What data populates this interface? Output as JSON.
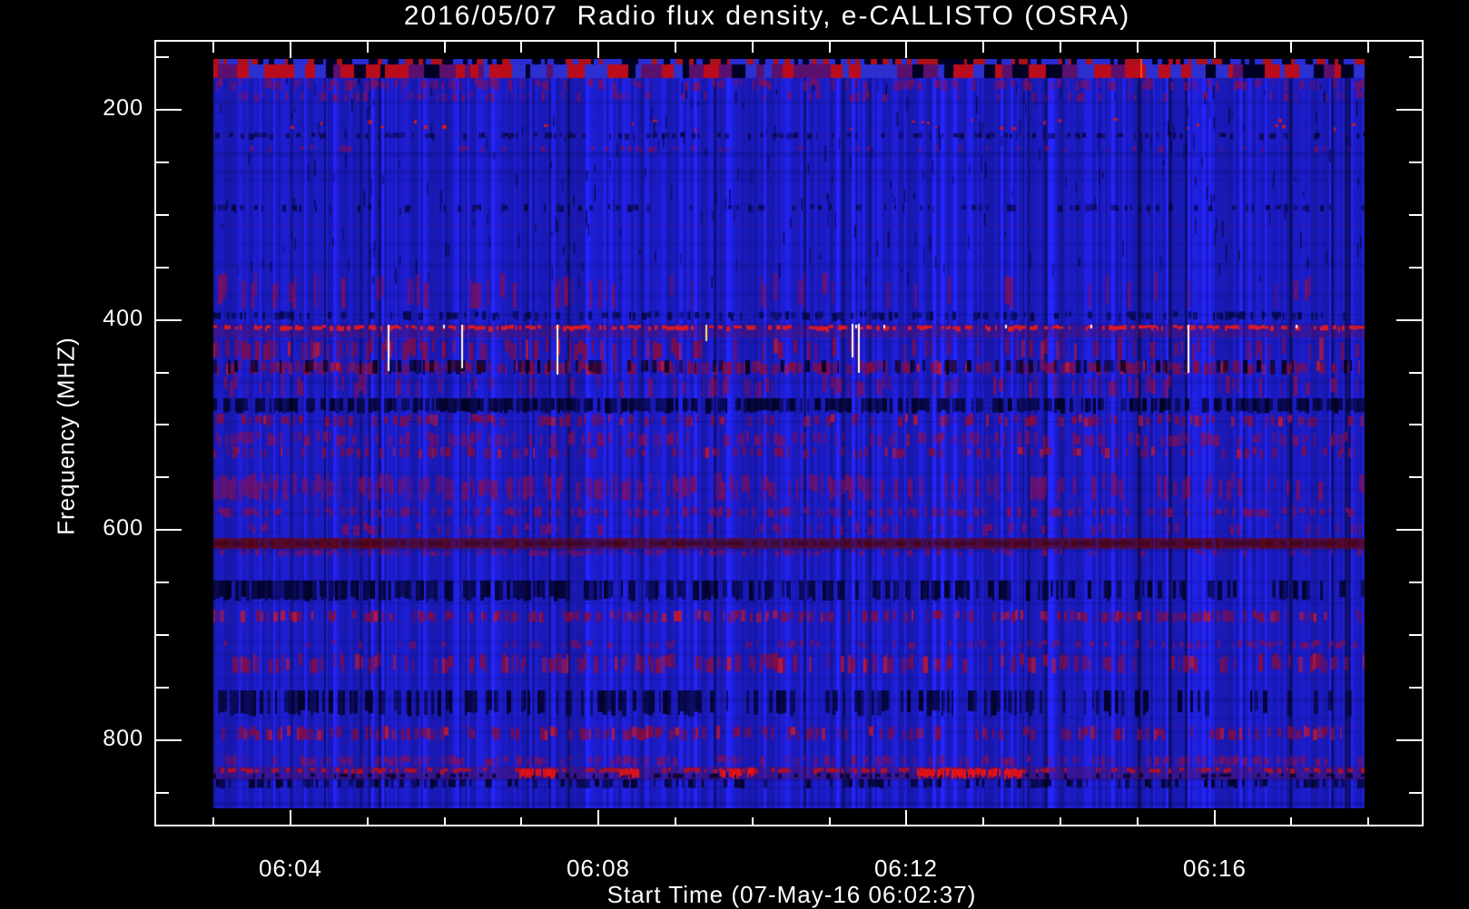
{
  "figure": {
    "title": "2016/05/07  Radio flux density, e-CALLISTO (OSRA)",
    "xlabel": "Start Time (07-May-16 06:02:37)",
    "ylabel": "Frequency (MHZ)"
  },
  "chart_data": {
    "type": "heatmap",
    "variant": "solar-radio-dynamic-spectrum",
    "title": "2016/05/07  Radio flux density, e-CALLISTO (OSRA)",
    "xlabel": "Start Time (07-May-16 06:02:37)",
    "ylabel": "Frequency (MHZ)",
    "x_axis": {
      "start_time_label": "06:02:37",
      "major_ticks": [
        "06:04",
        "06:08",
        "06:12",
        "06:16"
      ],
      "minor_ticks": [
        "06:03",
        "06:05",
        "06:06",
        "06:07",
        "06:09",
        "06:10",
        "06:11",
        "06:13",
        "06:14",
        "06:15",
        "06:17",
        "06:18"
      ],
      "minor_interval_minutes": 1
    },
    "y_axis": {
      "major_ticks": [
        200,
        400,
        600,
        800
      ],
      "minor_ticks": [
        150,
        250,
        300,
        350,
        450,
        500,
        550,
        650,
        700,
        750,
        850
      ],
      "unit": "MHz",
      "direction": "increasing-downward"
    },
    "data_extent": {
      "time": [
        "06:03:00",
        "06:17:57"
      ],
      "frequency_mhz": [
        152,
        865
      ]
    },
    "palette": {
      "background": "#000000",
      "text": "#ffffff",
      "frame": "#ffffff",
      "base_blue": "#2222ee",
      "dark_blue": "#000026",
      "red": "#b41420",
      "bright_red": "#d71a26",
      "dark_red": "#600616",
      "purple": "#961246",
      "spike_white": "#ffffff"
    },
    "bands": [
      {
        "f0": 152,
        "f1": 157,
        "type": "checker",
        "strength": 1.0,
        "xmod": "flat"
      },
      {
        "f0": 157,
        "f1": 170,
        "type": "bigblock",
        "strength": 1.0,
        "xmod": "flat"
      },
      {
        "f0": 170,
        "f1": 182,
        "type": "purple",
        "strength": 0.45,
        "xmod": "flat"
      },
      {
        "f0": 182,
        "f1": 192,
        "type": "purple",
        "strength": 0.2,
        "xmod": "flat"
      },
      {
        "f0": 208,
        "f1": 221,
        "type": "speck",
        "strength": 0.5,
        "xmod": "flat"
      },
      {
        "f0": 222,
        "f1": 228,
        "type": "dark",
        "strength": 0.35,
        "xmod": "flat"
      },
      {
        "f0": 234,
        "f1": 241,
        "type": "purple",
        "strength": 0.15,
        "xmod": "flat"
      },
      {
        "f0": 290,
        "f1": 297,
        "type": "dark",
        "strength": 0.3,
        "xmod": "flat"
      },
      {
        "f0": 355,
        "f1": 389,
        "type": "purple",
        "strength": 0.2,
        "xmod": "left"
      },
      {
        "f0": 392,
        "f1": 400,
        "type": "dark",
        "strength": 0.45,
        "xmod": "flat"
      },
      {
        "f0": 405,
        "f1": 417,
        "type": "brightspeck",
        "strength": 0.95,
        "xmod": "flat"
      },
      {
        "f0": 417,
        "f1": 438,
        "type": "redmix",
        "strength": 0.5,
        "xmod": "left"
      },
      {
        "f0": 438,
        "f1": 452,
        "type": "redmix",
        "strength": 0.7,
        "xmod": "flat"
      },
      {
        "f0": 438,
        "f1": 452,
        "type": "darkdash",
        "strength": 0.4,
        "xmod": "left"
      },
      {
        "f0": 452,
        "f1": 474,
        "type": "purple",
        "strength": 0.3,
        "xmod": "flat"
      },
      {
        "f0": 475,
        "f1": 489,
        "type": "darkdash",
        "strength": 0.8,
        "xmod": "flat"
      },
      {
        "f0": 489,
        "f1": 501,
        "type": "redmix",
        "strength": 0.45,
        "xmod": "flat"
      },
      {
        "f0": 506,
        "f1": 520,
        "type": "purple",
        "strength": 0.5,
        "xmod": "flat"
      },
      {
        "f0": 520,
        "f1": 532,
        "type": "redmix",
        "strength": 0.4,
        "xmod": "flat"
      },
      {
        "f0": 545,
        "f1": 571,
        "type": "purple",
        "strength": 0.7,
        "xmod": "left"
      },
      {
        "f0": 577,
        "f1": 588,
        "type": "purple",
        "strength": 0.5,
        "xmod": "flat"
      },
      {
        "f0": 593,
        "f1": 605,
        "type": "purple",
        "strength": 0.25,
        "xmod": "flat"
      },
      {
        "f0": 608,
        "f1": 618,
        "type": "darkred",
        "strength": 0.9,
        "xmod": "ends"
      },
      {
        "f0": 618,
        "f1": 625,
        "type": "purple",
        "strength": 0.5,
        "xmod": "left"
      },
      {
        "f0": 648,
        "f1": 668,
        "type": "darkdash",
        "strength": 0.8,
        "xmod": "left"
      },
      {
        "f0": 676,
        "f1": 688,
        "type": "redmix",
        "strength": 0.55,
        "xmod": "flat"
      },
      {
        "f0": 704,
        "f1": 713,
        "type": "purple",
        "strength": 0.4,
        "xmod": "right"
      },
      {
        "f0": 717,
        "f1": 736,
        "type": "redmix",
        "strength": 0.5,
        "xmod": "flat"
      },
      {
        "f0": 753,
        "f1": 778,
        "type": "darkdash",
        "strength": 0.6,
        "xmod": "left"
      },
      {
        "f0": 786,
        "f1": 800,
        "type": "redmix",
        "strength": 0.5,
        "xmod": "flat"
      },
      {
        "f0": 814,
        "f1": 824,
        "type": "purple",
        "strength": 0.45,
        "xmod": "flat"
      },
      {
        "f0": 825,
        "f1": 837,
        "type": "redspeck",
        "strength": 0.85,
        "xmod": "flat"
      },
      {
        "f0": 837,
        "f1": 846,
        "type": "darkdash",
        "strength": 0.4,
        "xmod": "flat"
      }
    ],
    "spikes": [
      {
        "time": "06:05:16",
        "f0": 405,
        "f1": 449,
        "color": "#ffffff"
      },
      {
        "time": "06:06:13",
        "f0": 405,
        "f1": 446,
        "color": "#fffff2"
      },
      {
        "time": "06:07:27",
        "f0": 405,
        "f1": 452,
        "color": "#ffffd8"
      },
      {
        "time": "06:09:23",
        "f0": 405,
        "f1": 420,
        "color": "#ffe878"
      },
      {
        "time": "06:11:17",
        "f0": 404,
        "f1": 436,
        "color": "#ffffff"
      },
      {
        "time": "06:11:22",
        "f0": 404,
        "f1": 450,
        "color": "#ffffff"
      },
      {
        "time": "06:15:39",
        "f0": 405,
        "f1": 450,
        "color": "#ffffff"
      },
      {
        "time": "06:15:02",
        "f0": 152,
        "f1": 170,
        "color": "#ff4818"
      }
    ],
    "bright_segments_830mhz": {
      "frequency_mhz": [
        826,
        836
      ],
      "intervals": [
        [
          "06:06:58",
          "06:07:28"
        ],
        [
          "06:08:16",
          "06:08:32"
        ],
        [
          "06:09:33",
          "06:10:01"
        ],
        [
          "06:12:08",
          "06:13:30"
        ]
      ]
    }
  }
}
